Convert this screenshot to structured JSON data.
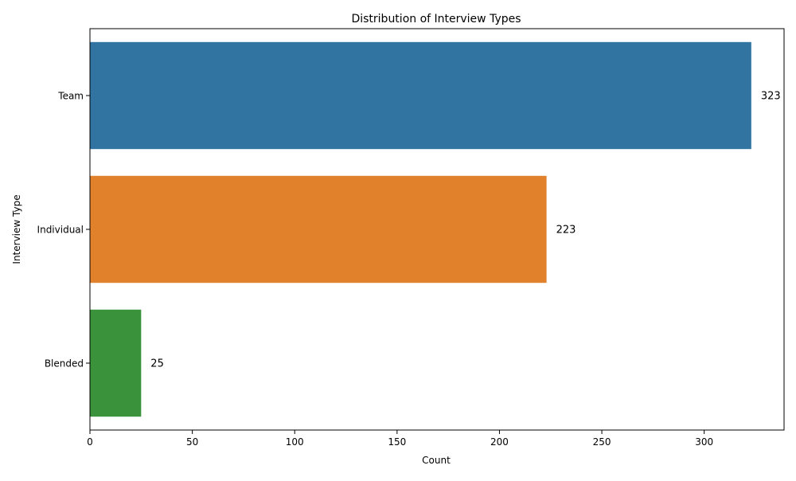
{
  "chart_data": {
    "type": "bar",
    "orientation": "horizontal",
    "title": "Distribution of Interview Types",
    "xlabel": "Count",
    "ylabel": "Interview Type",
    "categories": [
      "Team",
      "Individual",
      "Blended"
    ],
    "values": [
      323,
      223,
      25
    ],
    "data_labels": [
      "323",
      "223",
      "25"
    ],
    "colors": [
      "#3274a1",
      "#e1812c",
      "#3a923a"
    ],
    "xlim": [
      0,
      339
    ],
    "xticks": [
      0,
      50,
      100,
      150,
      200,
      250,
      300
    ],
    "grid": false,
    "legend": "none"
  }
}
